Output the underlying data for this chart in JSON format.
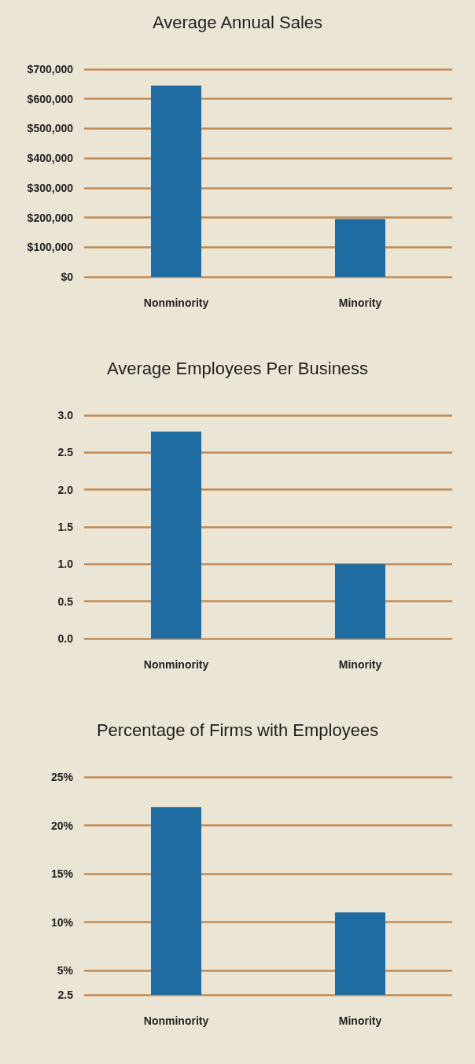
{
  "chart_data": [
    {
      "type": "bar",
      "title": "Average Annual Sales",
      "categories": [
        "Nonminority",
        "Minority"
      ],
      "values": [
        645000,
        195000
      ],
      "color": "#1f6ca3",
      "ylim": [
        0,
        700000
      ],
      "yticks": [
        {
          "value": 0,
          "label": "$0"
        },
        {
          "value": 100000,
          "label": "$100,000"
        },
        {
          "value": 200000,
          "label": "$200,000"
        },
        {
          "value": 300000,
          "label": "$300,000"
        },
        {
          "value": 400000,
          "label": "$400,000"
        },
        {
          "value": 500000,
          "label": "$500,000"
        },
        {
          "value": 600000,
          "label": "$600,000"
        },
        {
          "value": 700000,
          "label": "$700,000"
        }
      ],
      "grid": "y"
    },
    {
      "type": "bar",
      "title": "Average Employees Per Business",
      "categories": [
        "Nonminority",
        "Minority"
      ],
      "values": [
        2.78,
        1.0
      ],
      "color": "#1f6ca3",
      "ylim": [
        0,
        3
      ],
      "yticks": [
        {
          "value": 0,
          "label": "0.0"
        },
        0.5,
        {
          "value": 1,
          "label": "1.0"
        },
        1.5,
        {
          "value": 2,
          "label": "2.0"
        },
        2.5,
        {
          "value": 3,
          "label": "3.0"
        }
      ],
      "grid": "y"
    },
    {
      "type": "bar",
      "title": "Percentage of Firms with Employees",
      "categories": [
        "Nonminority",
        "Minority"
      ],
      "values": [
        21.9,
        11.0
      ],
      "color": "#1f6ca3",
      "ylim": [
        2.5,
        25
      ],
      "yticks": [
        2.5,
        {
          "value": 5,
          "label": "5%"
        },
        {
          "value": 10,
          "label": "10%"
        },
        {
          "value": 15,
          "label": "15%"
        },
        {
          "value": 20,
          "label": "20%"
        },
        {
          "value": 25,
          "label": "25%"
        }
      ],
      "grid": "y"
    }
  ]
}
